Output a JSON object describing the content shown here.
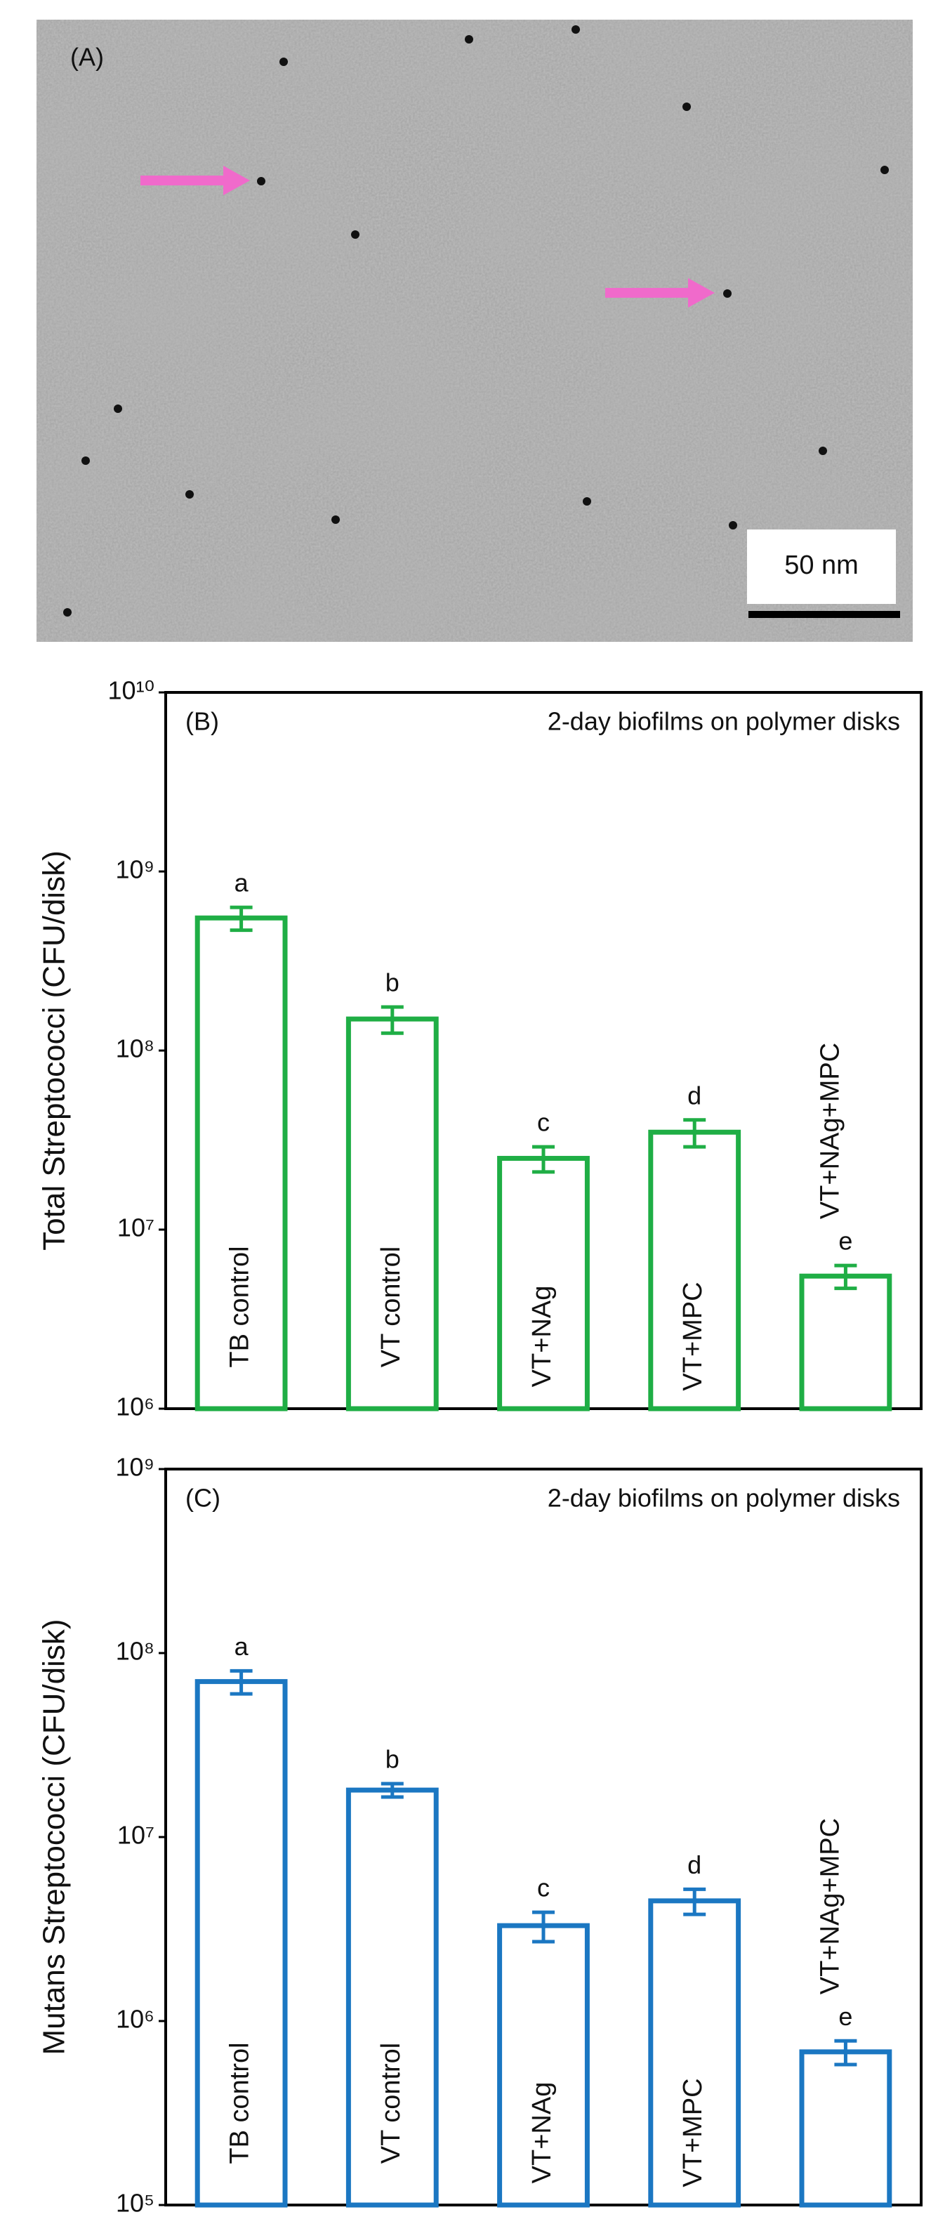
{
  "image_panel": {
    "label": "(A)",
    "scale_bar": "50 nm"
  },
  "chart_data": [
    {
      "type": "bar",
      "panel": "(B)",
      "title": "2-day biofilms on polymer disks",
      "y_label": "Total Streptococci (CFU/disk)",
      "categories": [
        "TB control",
        "VT control",
        "VT+NAg",
        "VT+MPC",
        "VT+NAg+MPC"
      ],
      "values": [
        550000000,
        150000000,
        25000000,
        35000000,
        5500000
      ],
      "errors": [
        80000000,
        25000000,
        4000000,
        6000000,
        800000
      ],
      "letters": [
        "a",
        "b",
        "c",
        "d",
        "e"
      ],
      "color": "#1fae45",
      "log": true,
      "ylim": [
        1000000,
        10000000000
      ],
      "yticks": [
        {
          "value": 1000000,
          "label": "10⁶"
        },
        {
          "value": 10000000,
          "label": "10⁷"
        },
        {
          "value": 100000000,
          "label": "10⁸"
        },
        {
          "value": 1000000000,
          "label": "10⁹"
        },
        {
          "value": 10000000000,
          "label": "10¹⁰"
        }
      ]
    },
    {
      "type": "bar",
      "panel": "(C)",
      "title": "2-day biofilms on polymer disks",
      "y_label": "Mutans Streptococci (CFU/disk)",
      "categories": [
        "TB control",
        "VT control",
        "VT+NAg",
        "VT+MPC",
        "VT+NAg+MPC"
      ],
      "values": [
        70000000,
        18000000,
        3300000,
        4500000,
        680000
      ],
      "errors": [
        10000000,
        1500000,
        600000,
        700000,
        100000
      ],
      "letters": [
        "a",
        "b",
        "c",
        "d",
        "e"
      ],
      "color": "#1b77c2",
      "log": true,
      "ylim": [
        100000,
        1000000000
      ],
      "yticks": [
        {
          "value": 100000,
          "label": "10⁵"
        },
        {
          "value": 1000000,
          "label": "10⁶"
        },
        {
          "value": 10000000,
          "label": "10⁷"
        },
        {
          "value": 100000000,
          "label": "10⁸"
        },
        {
          "value": 1000000000,
          "label": "10⁹"
        }
      ]
    }
  ]
}
